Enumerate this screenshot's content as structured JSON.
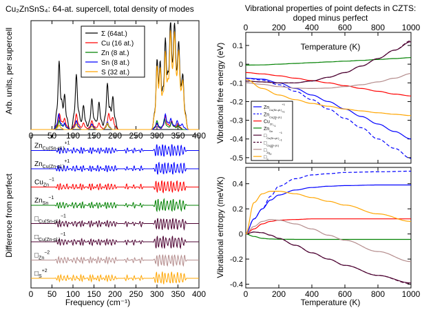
{
  "figure": {
    "left_title": "Cu₂ZnSnS₄: 64-at. supercell, total density of modes",
    "right_title_1": "Vibrational properties of point defects in CZTS:",
    "right_title_2": "doped minus perfect",
    "freq_xlabel": "Frequency (cm⁻¹)",
    "dos_ylabel": "Arb. units, per supercell",
    "diff_ylabel": "Difference from perfect",
    "temp_xlabel": "Temperature (K)",
    "fe_ylabel": "Vibrational free energy (eV)",
    "s_ylabel": "Vibrational entropy (meV/K)"
  },
  "colors": {
    "black": "#000000",
    "red": "#ff0000",
    "green": "#008000",
    "blue": "#0000ff",
    "orange": "#ffa500",
    "purple": "#4b0030",
    "brown": "#b48c8c"
  },
  "chart_data": [
    {
      "type": "line",
      "title": "Cu₂ZnSnS₄: 64-at. supercell, total density of modes",
      "xlabel": "",
      "ylabel": "Arb. units, per supercell",
      "xlim": [
        0,
        400
      ],
      "x_ticks": [
        0,
        50,
        100,
        150,
        200,
        250,
        300,
        350,
        400
      ],
      "legend_position": "top-center",
      "series": [
        {
          "name": "Σ",
          "legend_label": "Σ    (64at.)",
          "color": "#000000",
          "peaks": [
            [
              67,
              0.62
            ],
            [
              80,
              0.32
            ],
            [
              108,
              0.5
            ],
            [
              125,
              0.22
            ],
            [
              145,
              0.28
            ],
            [
              162,
              0.25
            ],
            [
              182,
              0.42
            ],
            [
              195,
              0.3
            ],
            [
              300,
              0.55
            ],
            [
              308,
              0.5
            ],
            [
              320,
              0.82
            ],
            [
              332,
              0.95
            ],
            [
              342,
              0.88
            ],
            [
              352,
              0.72
            ],
            [
              362,
              0.45
            ]
          ]
        },
        {
          "name": "Cu",
          "legend_label": "Cu (16 at.)",
          "color": "#ff0000",
          "peaks": [
            [
              68,
              0.14
            ],
            [
              80,
              0.1
            ],
            [
              108,
              0.14
            ],
            [
              125,
              0.06
            ],
            [
              145,
              0.08
            ],
            [
              162,
              0.06
            ],
            [
              185,
              0.14
            ],
            [
              195,
              0.1
            ],
            [
              300,
              0.05
            ],
            [
              320,
              0.12
            ],
            [
              335,
              0.08
            ],
            [
              350,
              0.06
            ]
          ]
        },
        {
          "name": "Zn",
          "legend_label": "Zn (8 at.)",
          "color": "#008000",
          "peaks": [
            [
              67,
              0.08
            ],
            [
              80,
              0.05
            ],
            [
              108,
              0.08
            ],
            [
              145,
              0.05
            ],
            [
              182,
              0.05
            ],
            [
              300,
              0.08
            ],
            [
              318,
              0.1
            ],
            [
              335,
              0.07
            ],
            [
              350,
              0.04
            ]
          ]
        },
        {
          "name": "Sn",
          "legend_label": "Sn (8 at.)",
          "color": "#0000ff",
          "peaks": [
            [
              66,
              0.14
            ],
            [
              80,
              0.06
            ],
            [
              108,
              0.08
            ],
            [
              145,
              0.05
            ],
            [
              182,
              0.07
            ],
            [
              300,
              0.06
            ],
            [
              320,
              0.14
            ],
            [
              333,
              0.1
            ],
            [
              348,
              0.08
            ],
            [
              360,
              0.05
            ]
          ]
        },
        {
          "name": "S",
          "legend_label": "S    (32 at.)",
          "color": "#ffa500",
          "peaks": [
            [
              67,
              0.04
            ],
            [
              108,
              0.05
            ],
            [
              145,
              0.03
            ],
            [
              182,
              0.06
            ],
            [
              300,
              0.5
            ],
            [
              308,
              0.45
            ],
            [
              320,
              0.7
            ],
            [
              332,
              0.85
            ],
            [
              342,
              0.8
            ],
            [
              352,
              0.65
            ],
            [
              362,
              0.4
            ]
          ]
        }
      ]
    },
    {
      "type": "line",
      "title": "",
      "xlabel": "Frequency (cm⁻¹)",
      "ylabel": "Difference from perfect",
      "xlim": [
        0,
        400
      ],
      "x_ticks": [
        0,
        50,
        100,
        150,
        200,
        250,
        300,
        350,
        400
      ],
      "series": [
        {
          "label": "Zn_Cu(Sn-pl.)^+1",
          "tag_base": "Zn",
          "tag_sub": "Cu(Sn-pl.)",
          "tag_sup": "+1",
          "color": "#0000ff",
          "dash": false,
          "offset": 8
        },
        {
          "label": "Zn_Cu(Zn-pl.)^+1",
          "tag_base": "Zn",
          "tag_sub": "Cu(Zn-pl.)",
          "tag_sup": "+1",
          "color": "#0000ff",
          "dash": false,
          "offset": 7
        },
        {
          "label": "Cu_Zn^-1",
          "tag_base": "Cu",
          "tag_sub": "Zn",
          "tag_sup": "−1",
          "color": "#ff0000",
          "dash": false,
          "offset": 6
        },
        {
          "label": "Zn_Sn^-1",
          "tag_base": "Zn",
          "tag_sub": "Sn",
          "tag_sup": "−1",
          "color": "#008000",
          "dash": false,
          "offset": 5
        },
        {
          "label": "□_Cu(Sn-pl.)^-1",
          "tag_base": "□",
          "tag_sub": "Cu(Sn-pl.)",
          "tag_sup": "−1",
          "color": "#4b0030",
          "dash": false,
          "offset": 4
        },
        {
          "label": "□_Cu(Zn-pl.)^-1",
          "tag_base": "□",
          "tag_sub": "Cu(Zn-pl.)",
          "tag_sup": "−1",
          "color": "#4b0030",
          "dash": false,
          "offset": 3
        },
        {
          "label": "□_Zn^-2",
          "tag_base": "□",
          "tag_sub": "Zn",
          "tag_sup": "−2",
          "color": "#b48c8c",
          "dash": false,
          "offset": 2
        },
        {
          "label": "□_S^+2",
          "tag_base": "□",
          "tag_sub": "S",
          "tag_sup": "+2",
          "color": "#ffa500",
          "dash": false,
          "offset": 1
        }
      ]
    },
    {
      "type": "line",
      "title": "Vibrational properties of point defects in CZTS: doped minus perfect",
      "xlabel": "Temperature (K)",
      "ylabel": "Vibrational free energy (eV)",
      "xlim": [
        0,
        1000
      ],
      "ylim": [
        -0.53,
        0.17
      ],
      "x_ticks": [
        0,
        200,
        400,
        600,
        800,
        1000
      ],
      "y_ticks": [
        -0.5,
        -0.4,
        -0.3,
        -0.2,
        -0.1,
        0,
        0.1
      ],
      "legend_position": "left-center",
      "x": [
        0,
        100,
        200,
        300,
        400,
        500,
        600,
        700,
        800,
        900,
        1000
      ],
      "series": [
        {
          "label": "Zn_Cu(Sn-pl.)^+1",
          "tag_base": "Zn",
          "tag_sub": "Cu(Sn-pl.)",
          "tag_sup": "+1",
          "color": "#0000ff",
          "dash": false,
          "values": [
            -0.075,
            -0.08,
            -0.1,
            -0.13,
            -0.165,
            -0.2,
            -0.24,
            -0.28,
            -0.32,
            -0.36,
            -0.4
          ]
        },
        {
          "label": "Zn_Cu(Zn-pl.)^+1",
          "tag_base": "Zn",
          "tag_sub": "Cu(Zn-pl.)",
          "tag_sup": "+1",
          "color": "#0000ff",
          "dash": true,
          "values": [
            -0.075,
            -0.085,
            -0.11,
            -0.145,
            -0.19,
            -0.24,
            -0.29,
            -0.34,
            -0.4,
            -0.45,
            -0.505
          ]
        },
        {
          "label": "Cu_Zn^-1",
          "tag_base": "Cu",
          "tag_sub": "Zn",
          "tag_sup": "−1",
          "color": "#ff0000",
          "dash": false,
          "values": [
            -0.045,
            -0.052,
            -0.062,
            -0.075,
            -0.088,
            -0.1,
            -0.115,
            -0.13,
            -0.145,
            -0.16,
            -0.17
          ]
        },
        {
          "label": "Zn_Sn^-1",
          "tag_base": "Zn",
          "tag_sub": "Sn",
          "tag_sup": "−1",
          "color": "#008000",
          "dash": false,
          "values": [
            -0.005,
            -0.004,
            0.0,
            0.004,
            0.008,
            0.012,
            0.016,
            0.02,
            0.025,
            0.03,
            0.035
          ]
        },
        {
          "label": "□_Cu(Sn-pl.)^-1",
          "tag_base": "□",
          "tag_sub": "Cu(Sn-pl.)",
          "tag_sup": "−1",
          "color": "#4b0030",
          "dash": false,
          "values": [
            -0.09,
            -0.095,
            -0.1,
            -0.1,
            -0.09,
            -0.07,
            -0.045,
            -0.01,
            0.03,
            0.075,
            0.12
          ]
        },
        {
          "label": "□_Cu(Zn-pl.)^-1",
          "tag_base": "□",
          "tag_sub": "Cu(Zn-pl.)",
          "tag_sup": "−1",
          "color": "#4b0030",
          "dash": true,
          "values": [
            -0.09,
            -0.095,
            -0.1,
            -0.1,
            -0.09,
            -0.07,
            -0.045,
            -0.01,
            0.03,
            0.075,
            0.125
          ]
        },
        {
          "label": "□_Zn^-2",
          "tag_base": "□",
          "tag_sub": "Zn",
          "tag_sup": "−2",
          "color": "#b48c8c",
          "dash": false,
          "values": [
            -0.1,
            -0.108,
            -0.12,
            -0.128,
            -0.13,
            -0.128,
            -0.12,
            -0.11,
            -0.095,
            -0.075,
            -0.05
          ]
        },
        {
          "label": "□_S^+2",
          "tag_base": "□",
          "tag_sub": "S",
          "tag_sup": "+2",
          "color": "#ffa500",
          "dash": false,
          "values": [
            -0.08,
            -0.13,
            -0.165,
            -0.19,
            -0.21,
            -0.225,
            -0.24,
            -0.25,
            -0.26,
            -0.268,
            -0.275
          ]
        }
      ]
    },
    {
      "type": "line",
      "title": "",
      "xlabel": "Temperature (K)",
      "ylabel": "Vibrational entropy (meV/K)",
      "xlim": [
        0,
        1000
      ],
      "ylim": [
        -0.43,
        0.53
      ],
      "x_ticks": [
        0,
        200,
        400,
        600,
        800,
        1000
      ],
      "y_ticks": [
        -0.4,
        -0.2,
        0,
        0.2,
        0.4
      ],
      "x": [
        0,
        50,
        100,
        150,
        200,
        300,
        400,
        500,
        600,
        800,
        1000
      ],
      "series": [
        {
          "label": "Zn_Cu(Sn-pl.)^+1",
          "color": "#0000ff",
          "dash": false,
          "values": [
            0,
            0.12,
            0.2,
            0.27,
            0.31,
            0.35,
            0.37,
            0.38,
            0.385,
            0.39,
            0.39
          ]
        },
        {
          "label": "Zn_Cu(Zn-pl.)^+1",
          "color": "#0000ff",
          "dash": true,
          "values": [
            0,
            0.12,
            0.2,
            0.3,
            0.38,
            0.44,
            0.47,
            0.48,
            0.49,
            0.495,
            0.5
          ]
        },
        {
          "label": "Cu_Zn^-1",
          "color": "#ff0000",
          "dash": false,
          "values": [
            0,
            0.04,
            0.08,
            0.1,
            0.11,
            0.115,
            0.12,
            0.12,
            0.12,
            0.12,
            0.12
          ]
        },
        {
          "label": "Zn_Sn^-1",
          "color": "#008000",
          "dash": false,
          "values": [
            0,
            -0.02,
            -0.035,
            -0.04,
            -0.042,
            -0.043,
            -0.043,
            -0.043,
            -0.043,
            -0.043,
            -0.043
          ]
        },
        {
          "label": "□_Cu(Sn-pl.)^-1",
          "color": "#4b0030",
          "dash": false,
          "values": [
            0,
            0.015,
            0.01,
            -0.01,
            -0.035,
            -0.09,
            -0.15,
            -0.2,
            -0.25,
            -0.33,
            -0.39
          ]
        },
        {
          "label": "□_Cu(Zn-pl.)^-1",
          "color": "#4b0030",
          "dash": true,
          "values": [
            0,
            0.015,
            0.01,
            -0.01,
            -0.035,
            -0.09,
            -0.15,
            -0.2,
            -0.25,
            -0.33,
            -0.395
          ]
        },
        {
          "label": "□_Zn^-2",
          "color": "#b48c8c",
          "dash": false,
          "values": [
            0,
            0.06,
            0.1,
            0.115,
            0.11,
            0.08,
            0.04,
            -0.01,
            -0.05,
            -0.14,
            -0.22
          ]
        },
        {
          "label": "□_S^+2",
          "color": "#ffa500",
          "dash": false,
          "values": [
            0,
            0.25,
            0.32,
            0.34,
            0.34,
            0.32,
            0.29,
            0.26,
            0.23,
            0.16,
            0.1
          ]
        }
      ]
    }
  ]
}
